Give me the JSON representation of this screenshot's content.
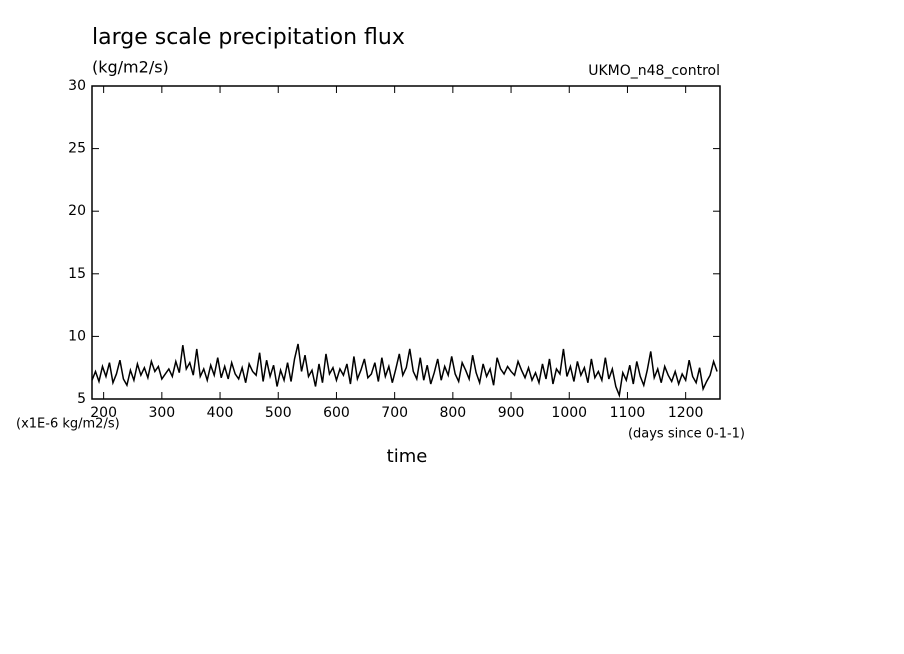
{
  "chart_data": {
    "type": "line",
    "title": "large scale precipitation flux",
    "subtitle": "(kg/m2/s)",
    "annotation": "UKMO_n48_control",
    "y_unit_label": "(x1E-6 kg/m2/s)",
    "x_unit_label": "(days since 0-1-1)",
    "x_label": "time",
    "color": "#000000",
    "xlim": [
      180,
      1259
    ],
    "ylim": [
      5,
      30
    ],
    "xticks": [
      200,
      300,
      400,
      500,
      600,
      700,
      800,
      900,
      1000,
      1100,
      1200
    ],
    "yticks": [
      5,
      10,
      15,
      20,
      25,
      30
    ],
    "x": [
      180,
      186,
      192,
      198,
      204,
      210,
      216,
      222,
      228,
      234,
      240,
      246,
      252,
      258,
      264,
      270,
      276,
      282,
      288,
      294,
      300,
      306,
      312,
      318,
      324,
      330,
      336,
      342,
      348,
      354,
      360,
      366,
      372,
      378,
      384,
      390,
      396,
      402,
      408,
      414,
      420,
      426,
      432,
      438,
      444,
      450,
      456,
      462,
      468,
      474,
      480,
      486,
      492,
      498,
      504,
      510,
      516,
      522,
      528,
      534,
      540,
      546,
      552,
      558,
      564,
      570,
      576,
      582,
      588,
      594,
      600,
      606,
      612,
      618,
      624,
      630,
      636,
      642,
      648,
      654,
      660,
      666,
      672,
      678,
      684,
      690,
      696,
      702,
      708,
      714,
      720,
      726,
      732,
      738,
      744,
      750,
      756,
      762,
      768,
      774,
      780,
      786,
      792,
      798,
      804,
      810,
      816,
      822,
      828,
      834,
      840,
      846,
      852,
      858,
      864,
      870,
      876,
      882,
      888,
      894,
      900,
      906,
      912,
      918,
      924,
      930,
      936,
      942,
      948,
      954,
      960,
      966,
      972,
      978,
      984,
      990,
      996,
      1002,
      1008,
      1014,
      1020,
      1026,
      1032,
      1038,
      1044,
      1050,
      1056,
      1062,
      1068,
      1074,
      1080,
      1086,
      1092,
      1098,
      1104,
      1110,
      1116,
      1122,
      1128,
      1134,
      1140,
      1146,
      1152,
      1158,
      1164,
      1170,
      1176,
      1182,
      1188,
      1194,
      1200,
      1206,
      1212,
      1218,
      1224,
      1230,
      1236,
      1242,
      1248,
      1254
    ],
    "values": [
      6.5,
      7.2,
      6.4,
      7.6,
      6.8,
      7.9,
      6.3,
      7.0,
      8.1,
      6.6,
      6.1,
      7.3,
      6.5,
      7.8,
      6.9,
      7.5,
      6.7,
      8.0,
      7.2,
      7.6,
      6.6,
      7.0,
      7.4,
      6.8,
      8.0,
      7.1,
      9.3,
      7.4,
      7.9,
      6.9,
      9.0,
      6.8,
      7.4,
      6.5,
      7.7,
      6.9,
      8.3,
      6.7,
      7.6,
      6.6,
      7.9,
      7.0,
      6.6,
      7.5,
      6.3,
      7.8,
      7.2,
      6.9,
      8.7,
      6.4,
      8.1,
      6.8,
      7.7,
      6.0,
      7.3,
      6.5,
      7.9,
      6.4,
      8.2,
      9.4,
      7.2,
      8.5,
      6.8,
      7.3,
      6.0,
      7.8,
      6.3,
      8.6,
      7.0,
      7.5,
      6.5,
      7.4,
      6.9,
      7.8,
      6.2,
      8.4,
      6.6,
      7.3,
      8.2,
      6.7,
      7.0,
      7.9,
      6.4,
      8.3,
      6.8,
      7.6,
      6.3,
      7.4,
      8.6,
      6.9,
      7.5,
      9.0,
      7.2,
      6.6,
      8.3,
      6.5,
      7.7,
      6.2,
      7.1,
      8.2,
      6.5,
      7.6,
      6.9,
      8.4,
      7.0,
      6.4,
      7.9,
      7.3,
      6.6,
      8.5,
      7.1,
      6.3,
      7.8,
      6.8,
      7.4,
      6.1,
      8.3,
      7.4,
      7.0,
      7.6,
      7.2,
      6.9,
      8.0,
      7.3,
      6.7,
      7.5,
      6.5,
      7.1,
      6.3,
      7.8,
      6.6,
      8.2,
      6.2,
      7.4,
      7.0,
      9.0,
      6.8,
      7.6,
      6.4,
      8.0,
      6.9,
      7.5,
      6.3,
      8.2,
      6.7,
      7.2,
      6.5,
      8.3,
      6.6,
      7.4,
      6.0,
      5.3,
      7.1,
      6.5,
      7.7,
      6.2,
      8.0,
      6.8,
      6.1,
      7.3,
      8.8,
      6.7,
      7.4,
      6.3,
      7.6,
      6.9,
      6.4,
      7.2,
      6.2,
      7.0,
      6.5,
      8.1,
      6.8,
      6.3,
      7.5,
      5.8,
      6.4,
      6.9,
      8.0,
      7.2
    ]
  }
}
